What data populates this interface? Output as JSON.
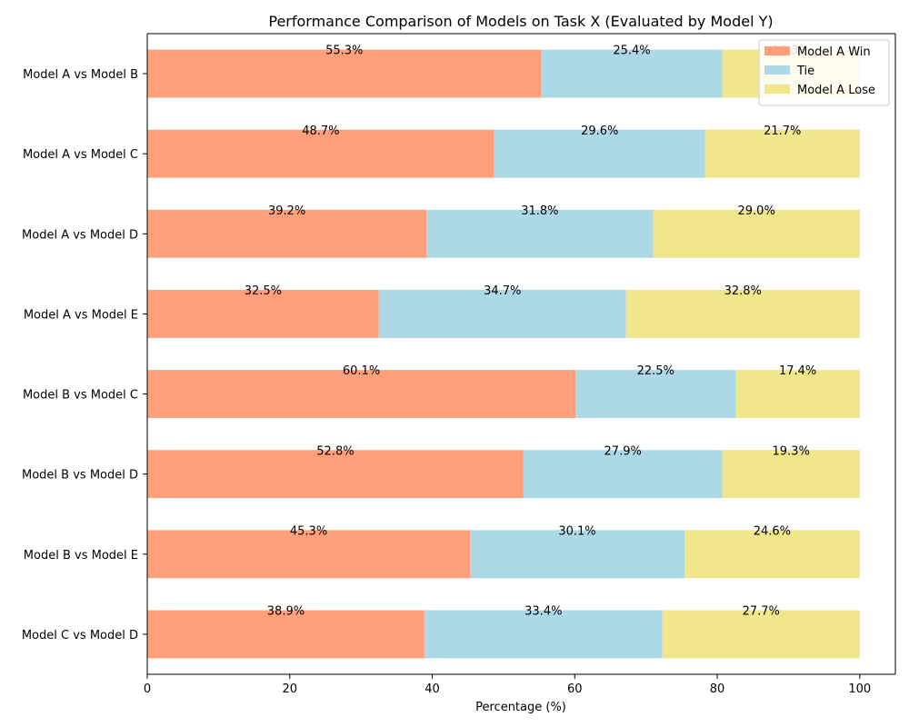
{
  "chart_data": {
    "type": "bar",
    "orientation": "horizontal",
    "stacked": true,
    "title": "Performance Comparison of Models on Task X (Evaluated by Model Y)",
    "xlabel": "Percentage (%)",
    "ylabel": "",
    "xlim": [
      0,
      105
    ],
    "xticks": [
      "0",
      "20",
      "40",
      "60",
      "80",
      "100"
    ],
    "grid": false,
    "legend_position": "top-right",
    "categories": [
      "Model A vs Model B",
      "Model A vs Model C",
      "Model A vs Model D",
      "Model A vs Model E",
      "Model B vs Model C",
      "Model B vs Model D",
      "Model B vs Model E",
      "Model C vs Model D"
    ],
    "series": [
      {
        "name": "Model A Win",
        "color": "#FFA07A",
        "values": [
          55.3,
          48.7,
          39.2,
          32.5,
          60.1,
          52.8,
          45.3,
          38.9
        ],
        "labels": [
          "55.3%",
          "48.7%",
          "39.2%",
          "32.5%",
          "60.1%",
          "52.8%",
          "45.3%",
          "38.9%"
        ]
      },
      {
        "name": "Tie",
        "color": "#ADD8E6",
        "values": [
          25.4,
          29.6,
          31.8,
          34.7,
          22.5,
          27.9,
          30.1,
          33.4
        ],
        "labels": [
          "25.4%",
          "29.6%",
          "31.8%",
          "34.7%",
          "22.5%",
          "27.9%",
          "30.1%",
          "33.4%"
        ]
      },
      {
        "name": "Model A Lose",
        "color": "#F0E68C",
        "values": [
          19.3,
          21.7,
          29.0,
          32.8,
          17.4,
          19.3,
          24.6,
          27.7
        ],
        "labels": [
          "19.3%",
          "21.7%",
          "29.0%",
          "32.8%",
          "17.4%",
          "19.3%",
          "24.6%",
          "27.7%"
        ]
      }
    ]
  }
}
